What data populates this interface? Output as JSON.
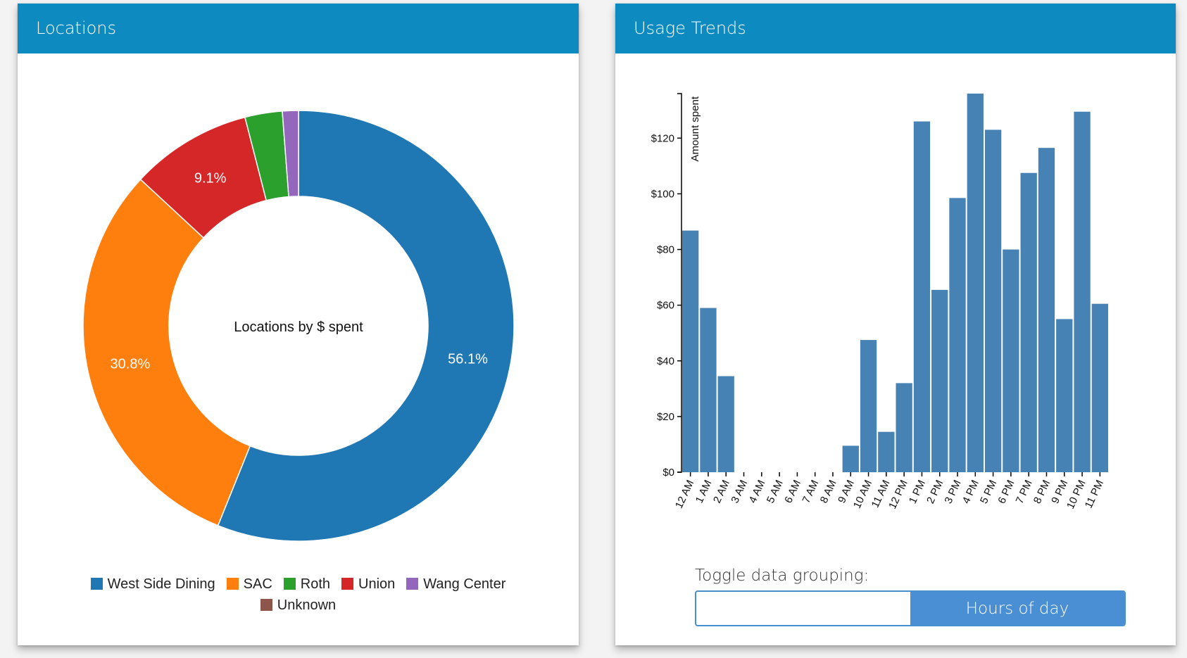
{
  "panels": {
    "locations": {
      "title": "Locations"
    },
    "usage": {
      "title": "Usage Trends"
    }
  },
  "toggle": {
    "label": "Toggle data grouping:",
    "options": [
      "",
      "Hours of day"
    ],
    "active_index": 1
  },
  "chart_data": [
    {
      "type": "pie",
      "variant": "donut",
      "center_label": "Locations by $ spent",
      "legend_position": "bottom",
      "series": [
        {
          "name": "West Side Dining",
          "value": 56.1,
          "label": "56.1%",
          "color": "#1f77b4"
        },
        {
          "name": "SAC",
          "value": 30.8,
          "label": "30.8%",
          "color": "#ff7f0e"
        },
        {
          "name": "Union",
          "value": 9.1,
          "label": "9.1%",
          "color": "#d62728"
        },
        {
          "name": "Roth",
          "value": 2.8,
          "label": "",
          "color": "#2ca02c"
        },
        {
          "name": "Wang Center",
          "value": 1.2,
          "label": "",
          "color": "#9467bd"
        },
        {
          "name": "Unknown",
          "value": 0,
          "label": "",
          "color": "#8c564b"
        }
      ],
      "legend_order": [
        "West Side Dining",
        "SAC",
        "Roth",
        "Union",
        "Wang Center",
        "Unknown"
      ]
    },
    {
      "type": "bar",
      "ylabel": "Amount spent",
      "ylim": [
        0,
        136
      ],
      "yticks": [
        "$0",
        "$20",
        "$40",
        "$60",
        "$80",
        "$100",
        "$120"
      ],
      "ytick_values": [
        0,
        20,
        40,
        60,
        80,
        100,
        120
      ],
      "bar_color": "#4682b4",
      "categories": [
        "12 AM",
        "1 AM",
        "2 AM",
        "3 AM",
        "4 AM",
        "5 AM",
        "6 AM",
        "7 AM",
        "8 AM",
        "9 AM",
        "10 AM",
        "11 AM",
        "12 PM",
        "1 PM",
        "2 PM",
        "3 PM",
        "4 PM",
        "5 PM",
        "6 PM",
        "7 PM",
        "8 PM",
        "9 PM",
        "10 PM",
        "11 PM"
      ],
      "values": [
        86.8,
        59,
        34.5,
        0,
        0,
        0,
        0,
        0,
        0,
        9.5,
        47.5,
        14.5,
        32,
        126,
        65.5,
        98.5,
        136,
        123,
        80,
        107.5,
        116.5,
        55,
        129.5,
        60.5
      ]
    }
  ]
}
